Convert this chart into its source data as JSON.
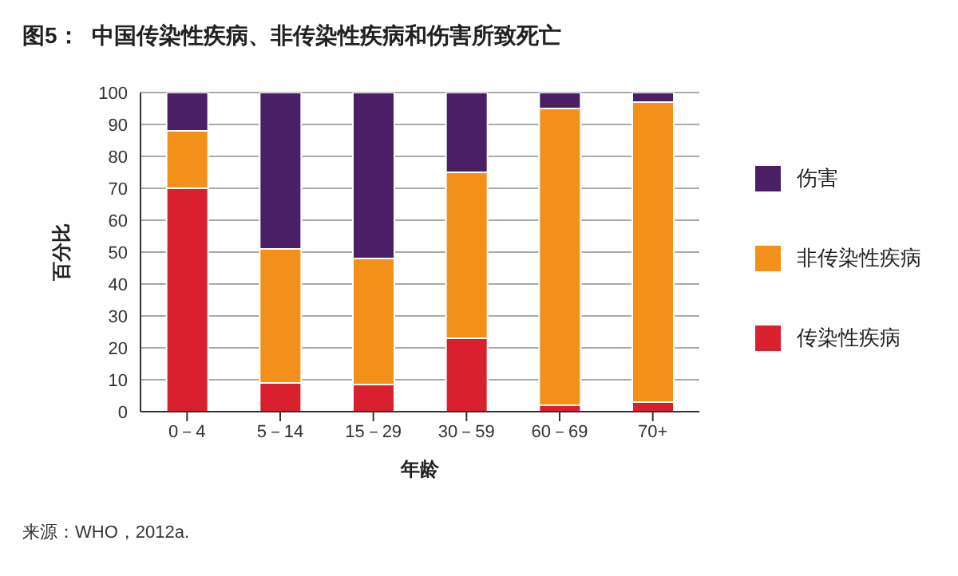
{
  "chart_data": {
    "type": "bar",
    "title": "图5：  中国传染性疾病、非传染性疾病和伤害所致死亡",
    "xlabel": "年龄",
    "ylabel": "百分比",
    "annotations": [
      "来源：WHO，2012a."
    ],
    "categories": [
      "0－4",
      "5－14",
      "15－29",
      "30－59",
      "60－69",
      "70+"
    ],
    "series": [
      {
        "name": "传染性疾病",
        "color": "#d9202e",
        "values": [
          70,
          9,
          8.5,
          23,
          2,
          3
        ]
      },
      {
        "name": "非传染性疾病",
        "color": "#f39019",
        "values": [
          18,
          42,
          39.5,
          52,
          93,
          94
        ]
      },
      {
        "name": "伤害",
        "color": "#4a1f66",
        "values": [
          12,
          49,
          52,
          25,
          5,
          3
        ]
      }
    ],
    "stacked": true,
    "ylim": [
      0,
      100
    ],
    "yticks": [
      0,
      10,
      20,
      30,
      40,
      50,
      60,
      70,
      80,
      90,
      100
    ],
    "grid": "y",
    "legend": "right"
  }
}
